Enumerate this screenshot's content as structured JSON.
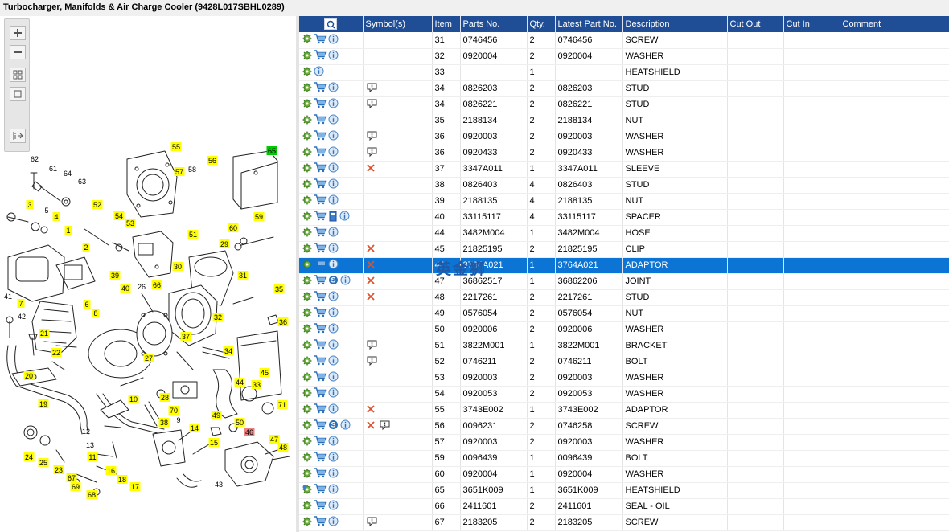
{
  "title": "Turbocharger, Manifolds & Air Charge Cooler (9428L017SBHL0289)",
  "watermark": "英金狮",
  "columns": [
    "Symbol(s)",
    "Item",
    "Parts No.",
    "Qty.",
    "Latest Part No.",
    "Description",
    "Cut Out",
    "Cut In",
    "Comment"
  ],
  "colors": {
    "header": "#1f4e96",
    "selected_row": "#0b74d4",
    "label_yellow": "#ffff00",
    "label_green": "#00cc00",
    "label_red": "#ee8080"
  },
  "toolbar_icons": [
    "zoom-in-icon",
    "zoom-out-icon",
    "fit-icon",
    "actual-size-icon",
    "export-icon"
  ],
  "rows": [
    {
      "gear": "gear-icon",
      "info_icons": [
        "cart",
        "info"
      ],
      "symbols": [],
      "item": "31",
      "part": "0746456",
      "qty": "2",
      "latest": "0746456",
      "desc": "SCREW"
    },
    {
      "gear": "gear-icon",
      "info_icons": [
        "cart",
        "info"
      ],
      "symbols": [],
      "item": "32",
      "part": "0920004",
      "qty": "2",
      "latest": "0920004",
      "desc": "WASHER"
    },
    {
      "gear": "gear-icon",
      "info_icons": [
        "info"
      ],
      "symbols": [],
      "item": "33",
      "part": "",
      "qty": "1",
      "latest": "",
      "desc": "HEATSHIELD"
    },
    {
      "gear": "gear-icon",
      "info_icons": [
        "cart",
        "info"
      ],
      "symbols": [
        "note"
      ],
      "item": "34",
      "part": "0826203",
      "qty": "2",
      "latest": "0826203",
      "desc": "STUD"
    },
    {
      "gear": "gear-icon",
      "info_icons": [
        "cart",
        "info"
      ],
      "symbols": [
        "note"
      ],
      "item": "34",
      "part": "0826221",
      "qty": "2",
      "latest": "0826221",
      "desc": "STUD"
    },
    {
      "gear": "gear-icon",
      "info_icons": [
        "cart",
        "info"
      ],
      "symbols": [],
      "item": "35",
      "part": "2188134",
      "qty": "2",
      "latest": "2188134",
      "desc": "NUT"
    },
    {
      "gear": "gear-icon",
      "info_icons": [
        "cart",
        "info"
      ],
      "symbols": [
        "note"
      ],
      "item": "36",
      "part": "0920003",
      "qty": "2",
      "latest": "0920003",
      "desc": "WASHER"
    },
    {
      "gear": "gear-icon",
      "info_icons": [
        "cart",
        "info"
      ],
      "symbols": [
        "note"
      ],
      "item": "36",
      "part": "0920433",
      "qty": "2",
      "latest": "0920433",
      "desc": "WASHER"
    },
    {
      "gear": "gear-icon",
      "info_icons": [
        "cart",
        "info"
      ],
      "symbols": [
        "cross"
      ],
      "item": "37",
      "part": "3347A011",
      "qty": "1",
      "latest": "3347A011",
      "desc": "SLEEVE"
    },
    {
      "gear": "gear-icon",
      "info_icons": [
        "cart",
        "info"
      ],
      "symbols": [],
      "item": "38",
      "part": "0826403",
      "qty": "4",
      "latest": "0826403",
      "desc": "STUD"
    },
    {
      "gear": "gear-icon",
      "info_icons": [
        "cart",
        "info"
      ],
      "symbols": [],
      "item": "39",
      "part": "2188135",
      "qty": "4",
      "latest": "2188135",
      "desc": "NUT"
    },
    {
      "gear": "gear-icon",
      "info_icons": [
        "cart",
        "book",
        "info"
      ],
      "symbols": [],
      "item": "40",
      "part": "33115117",
      "qty": "4",
      "latest": "33115117",
      "desc": "SPACER"
    },
    {
      "gear": "gear-icon",
      "info_icons": [
        "cart",
        "info"
      ],
      "symbols": [],
      "item": "44",
      "part": "3482M004",
      "qty": "1",
      "latest": "3482M004",
      "desc": "HOSE"
    },
    {
      "gear": "gear-icon",
      "info_icons": [
        "cart",
        "info"
      ],
      "symbols": [
        "cross"
      ],
      "item": "45",
      "part": "21825195",
      "qty": "2",
      "latest": "21825195",
      "desc": "CLIP"
    },
    {
      "gear": "gear-icon",
      "info_icons": [
        "cart",
        "info"
      ],
      "symbols": [
        "cross"
      ],
      "item": "46",
      "part": "3764A021",
      "qty": "1",
      "latest": "3764A021",
      "desc": "ADAPTOR",
      "selected": true
    },
    {
      "gear": "gear-icon",
      "info_icons": [
        "cart",
        "s",
        "info"
      ],
      "symbols": [
        "cross"
      ],
      "item": "47",
      "part": "36862517",
      "qty": "1",
      "latest": "36862206",
      "desc": "JOINT"
    },
    {
      "gear": "gear-icon",
      "info_icons": [
        "cart",
        "info"
      ],
      "symbols": [
        "cross"
      ],
      "item": "48",
      "part": "2217261",
      "qty": "2",
      "latest": "2217261",
      "desc": "STUD"
    },
    {
      "gear": "gear-icon",
      "info_icons": [
        "cart",
        "info"
      ],
      "symbols": [],
      "item": "49",
      "part": "0576054",
      "qty": "2",
      "latest": "0576054",
      "desc": "NUT"
    },
    {
      "gear": "gear-icon",
      "info_icons": [
        "cart",
        "info"
      ],
      "symbols": [],
      "item": "50",
      "part": "0920006",
      "qty": "2",
      "latest": "0920006",
      "desc": "WASHER"
    },
    {
      "gear": "gear-icon",
      "info_icons": [
        "cart",
        "info"
      ],
      "symbols": [
        "note"
      ],
      "item": "51",
      "part": "3822M001",
      "qty": "1",
      "latest": "3822M001",
      "desc": "BRACKET"
    },
    {
      "gear": "gear-icon",
      "info_icons": [
        "cart",
        "info"
      ],
      "symbols": [
        "note"
      ],
      "item": "52",
      "part": "0746211",
      "qty": "2",
      "latest": "0746211",
      "desc": "BOLT"
    },
    {
      "gear": "gear-icon",
      "info_icons": [
        "cart",
        "info"
      ],
      "symbols": [],
      "item": "53",
      "part": "0920003",
      "qty": "2",
      "latest": "0920003",
      "desc": "WASHER"
    },
    {
      "gear": "gear-icon",
      "info_icons": [
        "cart",
        "info"
      ],
      "symbols": [],
      "item": "54",
      "part": "0920053",
      "qty": "2",
      "latest": "0920053",
      "desc": "WASHER"
    },
    {
      "gear": "gear-icon",
      "info_icons": [
        "cart",
        "info"
      ],
      "symbols": [
        "cross"
      ],
      "item": "55",
      "part": "3743E002",
      "qty": "1",
      "latest": "3743E002",
      "desc": "ADAPTOR"
    },
    {
      "gear": "gear-icon",
      "info_icons": [
        "cart",
        "s",
        "info"
      ],
      "symbols": [
        "cross",
        "note"
      ],
      "item": "56",
      "part": "0096231",
      "qty": "2",
      "latest": "0746258",
      "desc": "SCREW"
    },
    {
      "gear": "gear-icon",
      "info_icons": [
        "cart",
        "info"
      ],
      "symbols": [],
      "item": "57",
      "part": "0920003",
      "qty": "2",
      "latest": "0920003",
      "desc": "WASHER"
    },
    {
      "gear": "gear-icon",
      "info_icons": [
        "cart",
        "info"
      ],
      "symbols": [],
      "item": "59",
      "part": "0096439",
      "qty": "1",
      "latest": "0096439",
      "desc": "BOLT"
    },
    {
      "gear": "gear-icon",
      "info_icons": [
        "cart",
        "info"
      ],
      "symbols": [],
      "item": "60",
      "part": "0920004",
      "qty": "1",
      "latest": "0920004",
      "desc": "WASHER"
    },
    {
      "gear": "multi-gear-icon",
      "info_icons": [
        "cart",
        "info"
      ],
      "symbols": [],
      "item": "65",
      "part": "3651K009",
      "qty": "1",
      "latest": "3651K009",
      "desc": "HEATSHIELD"
    },
    {
      "gear": "gear-icon",
      "info_icons": [
        "cart",
        "info"
      ],
      "symbols": [],
      "item": "66",
      "part": "2411601",
      "qty": "2",
      "latest": "2411601",
      "desc": "SEAL - OIL"
    },
    {
      "gear": "gear-icon",
      "info_icons": [
        "cart",
        "info"
      ],
      "symbols": [
        "note"
      ],
      "item": "67",
      "part": "2183205",
      "qty": "2",
      "latest": "2183205",
      "desc": "SCREW"
    }
  ],
  "callouts": [
    {
      "n": "55",
      "c": "y"
    },
    {
      "n": "65",
      "c": "g"
    },
    {
      "n": "62",
      "c": "n"
    },
    {
      "n": "61",
      "c": "n"
    },
    {
      "n": "64",
      "c": "n"
    },
    {
      "n": "63",
      "c": "n"
    },
    {
      "n": "57",
      "c": "y"
    },
    {
      "n": "58",
      "c": "n"
    },
    {
      "n": "56",
      "c": "y"
    },
    {
      "n": "3",
      "c": "y"
    },
    {
      "n": "5",
      "c": "n"
    },
    {
      "n": "4",
      "c": "y"
    },
    {
      "n": "52",
      "c": "y"
    },
    {
      "n": "54",
      "c": "y"
    },
    {
      "n": "53",
      "c": "y"
    },
    {
      "n": "59",
      "c": "y"
    },
    {
      "n": "1",
      "c": "y"
    },
    {
      "n": "2",
      "c": "y"
    },
    {
      "n": "51",
      "c": "y"
    },
    {
      "n": "60",
      "c": "y"
    },
    {
      "n": "29",
      "c": "y"
    },
    {
      "n": "39",
      "c": "y"
    },
    {
      "n": "30",
      "c": "y"
    },
    {
      "n": "26",
      "c": "n"
    },
    {
      "n": "66",
      "c": "y"
    },
    {
      "n": "31",
      "c": "y"
    },
    {
      "n": "40",
      "c": "y"
    },
    {
      "n": "35",
      "c": "y"
    },
    {
      "n": "7",
      "c": "y"
    },
    {
      "n": "6",
      "c": "y"
    },
    {
      "n": "41",
      "c": "n"
    },
    {
      "n": "42",
      "c": "n"
    },
    {
      "n": "8",
      "c": "y"
    },
    {
      "n": "32",
      "c": "y"
    },
    {
      "n": "36",
      "c": "y"
    },
    {
      "n": "21",
      "c": "y"
    },
    {
      "n": "37",
      "c": "y"
    },
    {
      "n": "22",
      "c": "y"
    },
    {
      "n": "34",
      "c": "y"
    },
    {
      "n": "27",
      "c": "y"
    },
    {
      "n": "20",
      "c": "y"
    },
    {
      "n": "44",
      "c": "y"
    },
    {
      "n": "33",
      "c": "y"
    },
    {
      "n": "28",
      "c": "y"
    },
    {
      "n": "10",
      "c": "y"
    },
    {
      "n": "19",
      "c": "y"
    },
    {
      "n": "45",
      "c": "y"
    },
    {
      "n": "71",
      "c": "y"
    },
    {
      "n": "70",
      "c": "y"
    },
    {
      "n": "38",
      "c": "y"
    },
    {
      "n": "9",
      "c": "n"
    },
    {
      "n": "49",
      "c": "y"
    },
    {
      "n": "50",
      "c": "y"
    },
    {
      "n": "14",
      "c": "y"
    },
    {
      "n": "12",
      "c": "n"
    },
    {
      "n": "46",
      "c": "r"
    },
    {
      "n": "13",
      "c": "n"
    },
    {
      "n": "47",
      "c": "y"
    },
    {
      "n": "48",
      "c": "y"
    },
    {
      "n": "15",
      "c": "y"
    },
    {
      "n": "11",
      "c": "y"
    },
    {
      "n": "24",
      "c": "y"
    },
    {
      "n": "25",
      "c": "y"
    },
    {
      "n": "16",
      "c": "y"
    },
    {
      "n": "23",
      "c": "y"
    },
    {
      "n": "67",
      "c": "y"
    },
    {
      "n": "18",
      "c": "y"
    },
    {
      "n": "69",
      "c": "y"
    },
    {
      "n": "17",
      "c": "y"
    },
    {
      "n": "68",
      "c": "y"
    },
    {
      "n": "43",
      "c": "n"
    }
  ]
}
